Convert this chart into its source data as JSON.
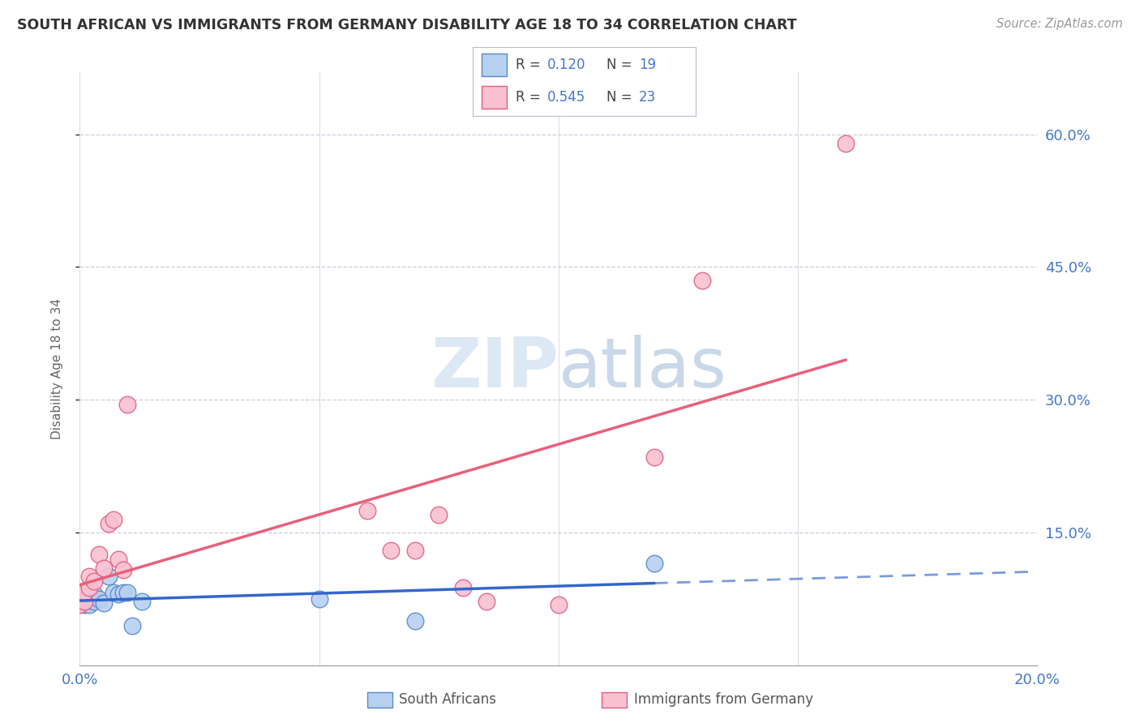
{
  "title": "SOUTH AFRICAN VS IMMIGRANTS FROM GERMANY DISABILITY AGE 18 TO 34 CORRELATION CHART",
  "source": "Source: ZipAtlas.com",
  "ylabel": "Disability Age 18 to 34",
  "xmin": 0.0,
  "xmax": 0.2,
  "ymin": 0.0,
  "ymax": 0.67,
  "ytick_values": [
    0.15,
    0.3,
    0.45,
    0.6
  ],
  "ytick_labels": [
    "15.0%",
    "30.0%",
    "45.0%",
    "60.0%"
  ],
  "xtick_values": [
    0.0,
    0.2
  ],
  "xtick_labels": [
    "0.0%",
    "20.0%"
  ],
  "grid_color": "#ccccdd",
  "background_color": "#ffffff",
  "sa_color": "#b8d0f0",
  "sa_edge_color": "#5588cc",
  "imm_color": "#f8c0d0",
  "imm_edge_color": "#e06080",
  "sa_line_color": "#3366cc",
  "imm_line_color": "#e8607a",
  "sa_R": 0.12,
  "sa_N": 19,
  "imm_R": 0.545,
  "imm_N": 23,
  "watermark_color": "#d8e8f8",
  "south_africans_x": [
    0.0,
    0.001,
    0.001,
    0.002,
    0.002,
    0.003,
    0.003,
    0.004,
    0.005,
    0.006,
    0.007,
    0.008,
    0.009,
    0.01,
    0.011,
    0.013,
    0.05,
    0.07,
    0.12
  ],
  "south_africans_y": [
    0.07,
    0.068,
    0.075,
    0.078,
    0.068,
    0.08,
    0.072,
    0.075,
    0.07,
    0.1,
    0.082,
    0.08,
    0.082,
    0.082,
    0.045,
    0.072,
    0.075,
    0.05,
    0.115
  ],
  "immigrants_x": [
    0.0,
    0.001,
    0.001,
    0.002,
    0.002,
    0.003,
    0.004,
    0.005,
    0.006,
    0.007,
    0.008,
    0.009,
    0.01,
    0.06,
    0.065,
    0.07,
    0.075,
    0.08,
    0.085,
    0.1,
    0.12,
    0.13,
    0.16
  ],
  "immigrants_y": [
    0.068,
    0.072,
    0.082,
    0.088,
    0.1,
    0.095,
    0.125,
    0.11,
    0.16,
    0.165,
    0.12,
    0.108,
    0.295,
    0.175,
    0.13,
    0.13,
    0.17,
    0.088,
    0.072,
    0.068,
    0.235,
    0.435,
    0.59
  ]
}
